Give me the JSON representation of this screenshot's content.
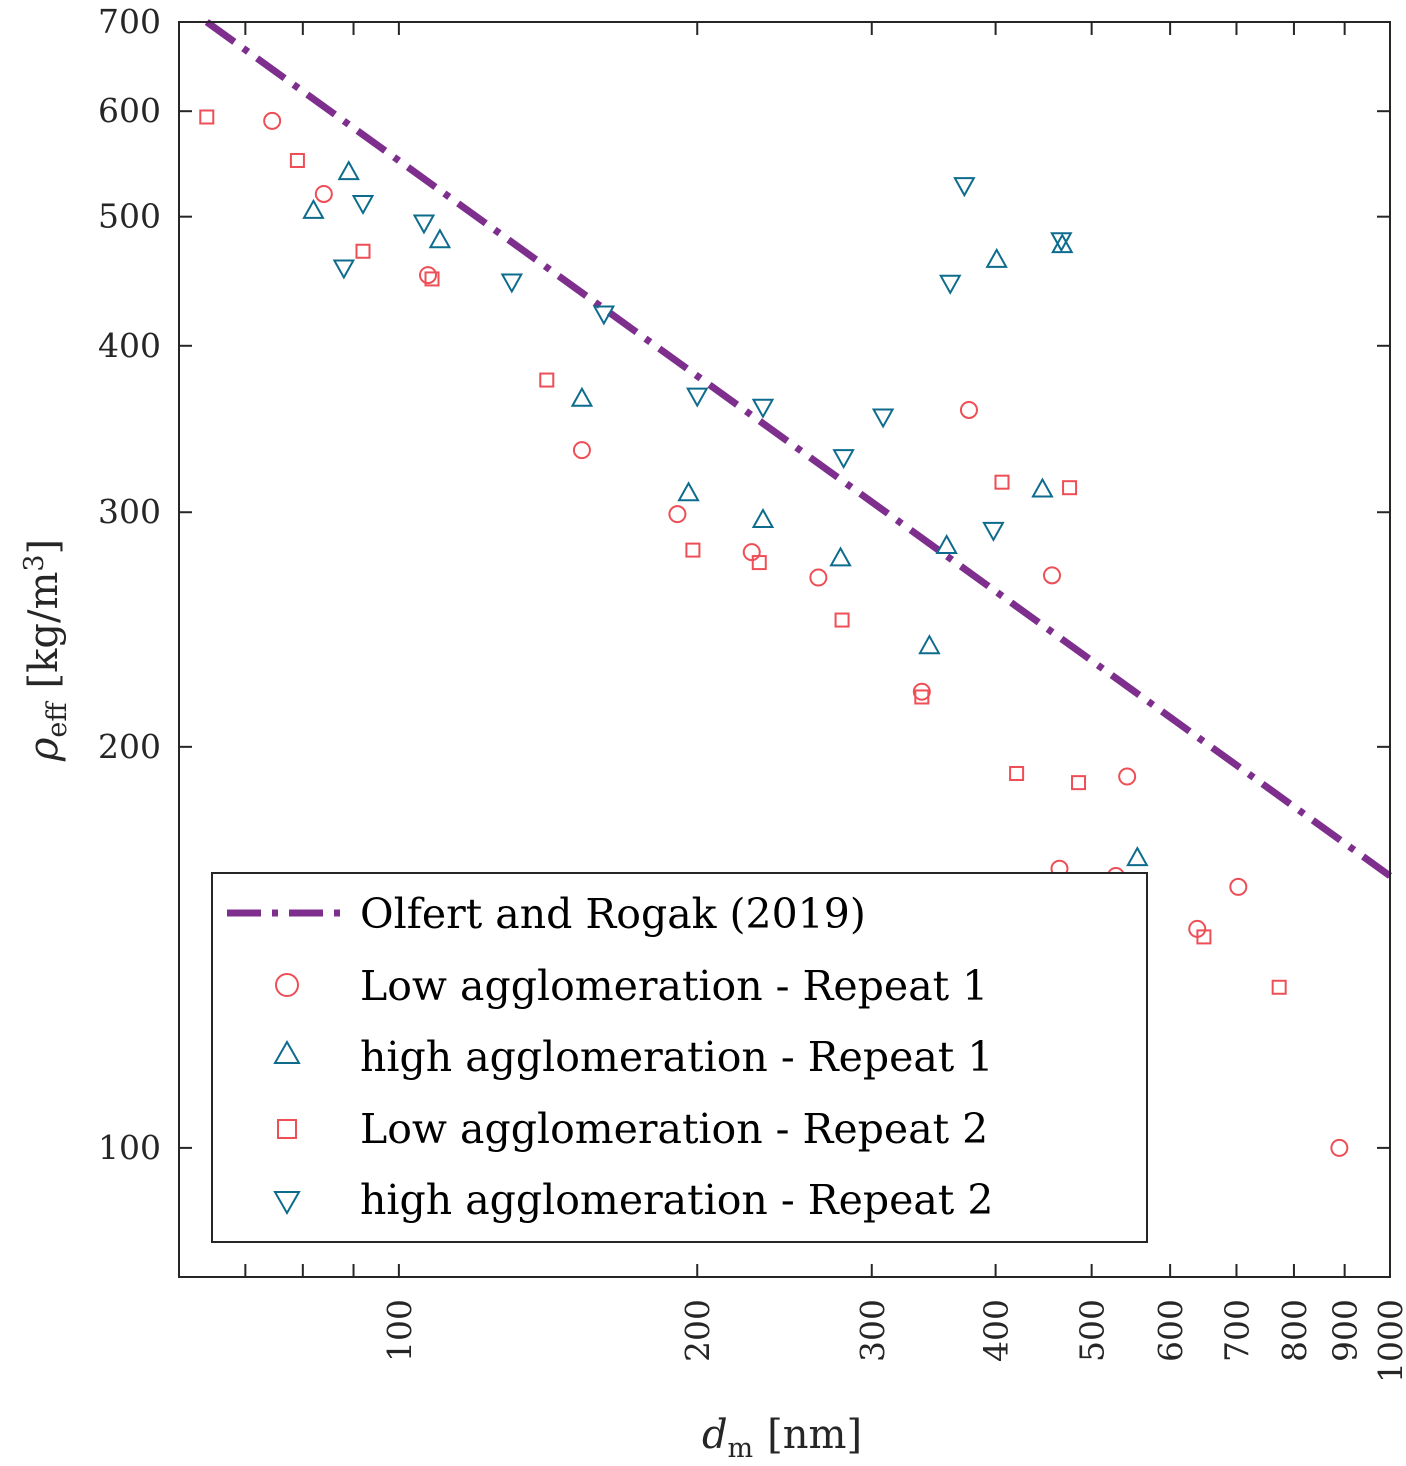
{
  "chart_data": {
    "type": "scatter",
    "title": "",
    "xlabel": {
      "symbol": "d",
      "subscript": "m",
      "unit": "[nm]"
    },
    "ylabel": {
      "symbol": "ρ",
      "subscript": "eff",
      "unit": "[kg/m",
      "unit_sup": "3",
      "unit_end": "]"
    },
    "xscale": "log",
    "yscale": "log",
    "xlim": [
      60,
      1000
    ],
    "ylim": [
      80,
      700
    ],
    "xticks": [
      70,
      80,
      90,
      100,
      200,
      300,
      400,
      500,
      600,
      700,
      800,
      900,
      1000
    ],
    "xtick_labels": [
      "",
      "",
      "",
      "100",
      "200",
      "300",
      "400",
      "500",
      "600",
      "700",
      "800",
      "900",
      "1000"
    ],
    "yticks": [
      100,
      200,
      300,
      400,
      500,
      600,
      700
    ],
    "ytick_labels": [
      "100",
      "200",
      "300",
      "400",
      "500",
      "600",
      "700"
    ],
    "grid": false,
    "legend_position": "bottom-left",
    "series": [
      {
        "name": "Olfert and Rogak (2019)",
        "kind": "line",
        "style": "dashdot",
        "color": "#7E2F8E",
        "x": [
          64,
          1000
        ],
        "y": [
          700,
          160
        ]
      },
      {
        "name": "Low agglomeration - Repeat 1",
        "kind": "marker",
        "marker": "circle",
        "color": "#EE4E55",
        "x": [
          74.5,
          84,
          107,
          153,
          191,
          227,
          265,
          337,
          376,
          456,
          464,
          529,
          543,
          639,
          703,
          889
        ],
        "y": [
          590,
          520,
          452,
          334,
          299,
          280,
          268,
          220,
          358,
          269,
          162,
          160,
          190,
          146,
          157,
          100
        ]
      },
      {
        "name": "high agglomeration - Repeat 1",
        "kind": "marker",
        "marker": "triangle-up",
        "color": "#0D6C8E",
        "x": [
          82,
          89,
          110,
          153,
          196,
          233,
          279,
          343,
          357,
          401,
          446,
          467,
          556
        ],
        "y": [
          505,
          540,
          480,
          365,
          310,
          296,
          277,
          238,
          283,
          464,
          312,
          476,
          165
        ]
      },
      {
        "name": "Low agglomeration - Repeat 2",
        "kind": "marker",
        "marker": "square",
        "color": "#EE4E55",
        "x": [
          64,
          79,
          92,
          108,
          141,
          198,
          231,
          280,
          337,
          406,
          420,
          475,
          485,
          649,
          773
        ],
        "y": [
          594,
          551,
          471,
          449,
          377,
          281,
          275,
          249,
          218,
          316,
          191,
          313,
          188,
          144,
          132
        ]
      },
      {
        "name": "high agglomeration - Repeat 2",
        "kind": "marker",
        "marker": "triangle-down",
        "color": "#0D6C8E",
        "x": [
          88,
          92,
          106,
          130,
          161,
          200,
          233,
          281,
          308,
          360,
          372,
          398,
          466
        ],
        "y": [
          458,
          512,
          495,
          447,
          423,
          367,
          360,
          330,
          354,
          446,
          528,
          291,
          480
        ]
      }
    ]
  }
}
